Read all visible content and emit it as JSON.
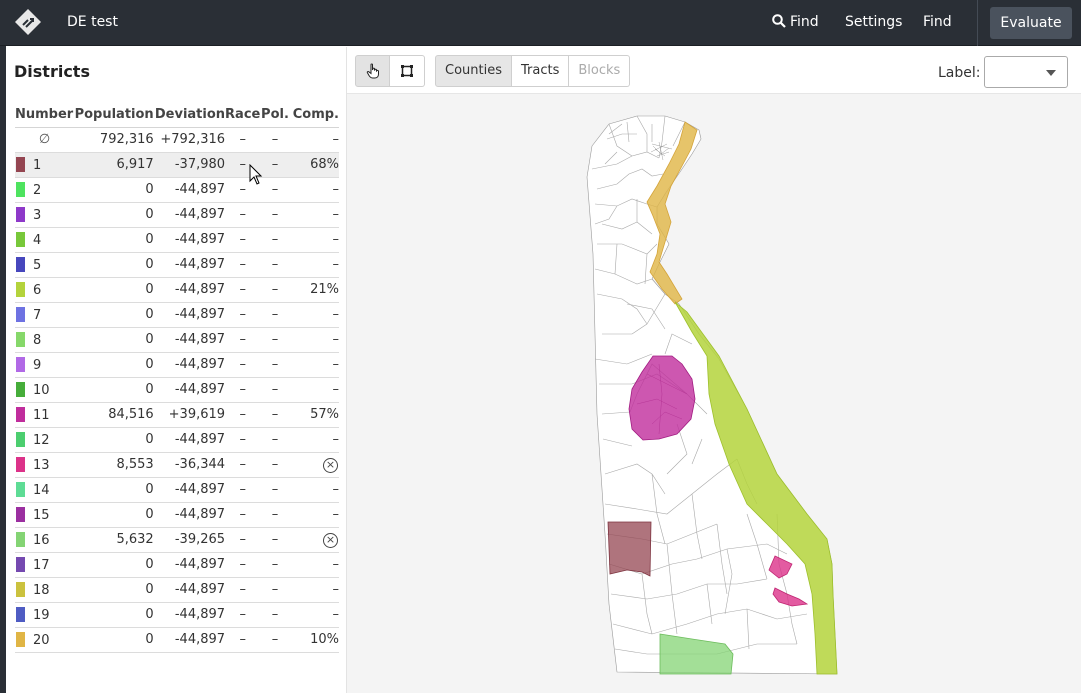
{
  "header": {
    "project_title": "DE test",
    "nav": {
      "find_with_icon": "Find",
      "settings": "Settings",
      "find": "Find",
      "evaluate": "Evaluate"
    },
    "icons": [
      "logo-icon",
      "search-icon"
    ]
  },
  "sidebar": {
    "title": "Districts",
    "columns": [
      "Number",
      "Population",
      "Deviation",
      "Race",
      "Pol.",
      "Comp."
    ],
    "unassigned_row": {
      "symbol": "∅",
      "population": "792,316",
      "deviation": "+792,316",
      "race": "–",
      "pol": "–",
      "comp": "–"
    },
    "rows": [
      {
        "number": "1",
        "color": "#944551",
        "population": "6,917",
        "deviation": "-37,980",
        "race": "–",
        "pol": "–",
        "comp": "68%",
        "selected": true
      },
      {
        "number": "2",
        "color": "#4ee35f",
        "population": "0",
        "deviation": "-44,897",
        "race": "–",
        "pol": "–",
        "comp": "–"
      },
      {
        "number": "3",
        "color": "#8e39c9",
        "population": "0",
        "deviation": "-44,897",
        "race": "–",
        "pol": "–",
        "comp": "–"
      },
      {
        "number": "4",
        "color": "#78c83a",
        "population": "0",
        "deviation": "-44,897",
        "race": "–",
        "pol": "–",
        "comp": "–"
      },
      {
        "number": "5",
        "color": "#4747bd",
        "population": "0",
        "deviation": "-44,897",
        "race": "–",
        "pol": "–",
        "comp": "–"
      },
      {
        "number": "6",
        "color": "#b4d33c",
        "population": "0",
        "deviation": "-44,897",
        "race": "–",
        "pol": "–",
        "comp": "21%"
      },
      {
        "number": "7",
        "color": "#6e72e2",
        "population": "0",
        "deviation": "-44,897",
        "race": "–",
        "pol": "–",
        "comp": "–"
      },
      {
        "number": "8",
        "color": "#86d86a",
        "population": "0",
        "deviation": "-44,897",
        "race": "–",
        "pol": "–",
        "comp": "–"
      },
      {
        "number": "9",
        "color": "#b169e6",
        "population": "0",
        "deviation": "-44,897",
        "race": "–",
        "pol": "–",
        "comp": "–"
      },
      {
        "number": "10",
        "color": "#46ad3a",
        "population": "0",
        "deviation": "-44,897",
        "race": "–",
        "pol": "–",
        "comp": "–"
      },
      {
        "number": "11",
        "color": "#c02d9c",
        "population": "84,516",
        "deviation": "+39,619",
        "race": "–",
        "pol": "–",
        "comp": "57%"
      },
      {
        "number": "12",
        "color": "#4cce6f",
        "population": "0",
        "deviation": "-44,897",
        "race": "–",
        "pol": "–",
        "comp": "–"
      },
      {
        "number": "13",
        "color": "#dc3289",
        "population": "8,553",
        "deviation": "-36,344",
        "race": "–",
        "pol": "–",
        "comp": "⊗"
      },
      {
        "number": "14",
        "color": "#5edc95",
        "population": "0",
        "deviation": "-44,897",
        "race": "–",
        "pol": "–",
        "comp": "–"
      },
      {
        "number": "15",
        "color": "#9b2fa0",
        "population": "0",
        "deviation": "-44,897",
        "race": "–",
        "pol": "–",
        "comp": "–"
      },
      {
        "number": "16",
        "color": "#84d474",
        "population": "5,632",
        "deviation": "-39,265",
        "race": "–",
        "pol": "–",
        "comp": "⊗"
      },
      {
        "number": "17",
        "color": "#7549b0",
        "population": "0",
        "deviation": "-44,897",
        "race": "–",
        "pol": "–",
        "comp": "–"
      },
      {
        "number": "18",
        "color": "#cbc23e",
        "population": "0",
        "deviation": "-44,897",
        "race": "–",
        "pol": "–",
        "comp": "–"
      },
      {
        "number": "19",
        "color": "#4f5cc3",
        "population": "0",
        "deviation": "-44,897",
        "race": "–",
        "pol": "–",
        "comp": "–"
      },
      {
        "number": "20",
        "color": "#e0b545",
        "population": "0",
        "deviation": "-44,897",
        "race": "–",
        "pol": "–",
        "comp": "10%"
      }
    ]
  },
  "toolbar": {
    "tools": [
      {
        "name": "pointer-tool",
        "icon": "hand-pointer-icon",
        "active": true
      },
      {
        "name": "rectangle-select-tool",
        "icon": "rectangle-select-icon",
        "active": false
      }
    ],
    "units": [
      {
        "label": "Counties",
        "active": true,
        "disabled": false
      },
      {
        "label": "Tracts",
        "active": false,
        "disabled": false
      },
      {
        "label": "Blocks",
        "active": false,
        "disabled": true
      }
    ],
    "label_text": "Label:",
    "label_value": ""
  },
  "map": {
    "state": "Delaware",
    "district_colors": {
      "d1": "#944551",
      "d6": "#b4d33c",
      "d11": "#c02d9c",
      "d13": "#dc3289",
      "d16": "#84d474",
      "d20": "#e0b545"
    }
  }
}
